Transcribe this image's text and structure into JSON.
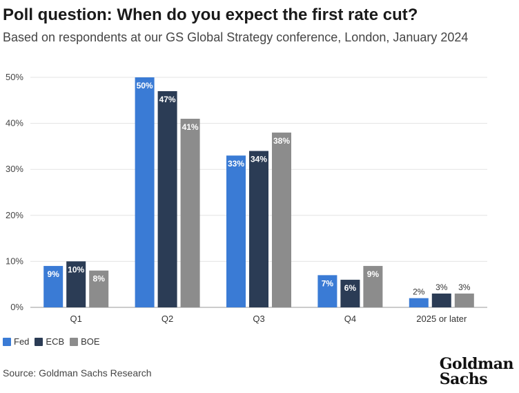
{
  "title": "Poll question: When do you expect the first rate cut?",
  "subtitle": "Based on respondents at our GS Global Strategy conference, London, January 2024",
  "source": "Source: Goldman Sachs Research",
  "logo": {
    "line1": "Goldman",
    "line2": "Sachs"
  },
  "colors": {
    "Fed": "#3a7bd5",
    "ECB": "#2b3c55",
    "BOE": "#8c8c8c"
  },
  "chart_data": {
    "type": "bar",
    "categories": [
      "Q1",
      "Q2",
      "Q3",
      "Q4",
      "2025 or later"
    ],
    "series": [
      {
        "name": "Fed",
        "values": [
          9,
          50,
          33,
          7,
          2
        ],
        "labels": [
          "9%",
          "50%",
          "33%",
          "7%",
          "2%"
        ]
      },
      {
        "name": "ECB",
        "values": [
          10,
          47,
          34,
          6,
          3
        ],
        "labels": [
          "10%",
          "47%",
          "34%",
          "6%",
          "3%"
        ]
      },
      {
        "name": "BOE",
        "values": [
          8,
          41,
          38,
          9,
          3
        ],
        "labels": [
          "8%",
          "41%",
          "38%",
          "9%",
          "3%"
        ]
      }
    ],
    "ylim": [
      0,
      50
    ],
    "yticks": [
      "0%",
      "10%",
      "20%",
      "30%",
      "40%",
      "50%"
    ],
    "grid": true,
    "legend": "bottom-left",
    "xlabel": "",
    "ylabel": ""
  }
}
